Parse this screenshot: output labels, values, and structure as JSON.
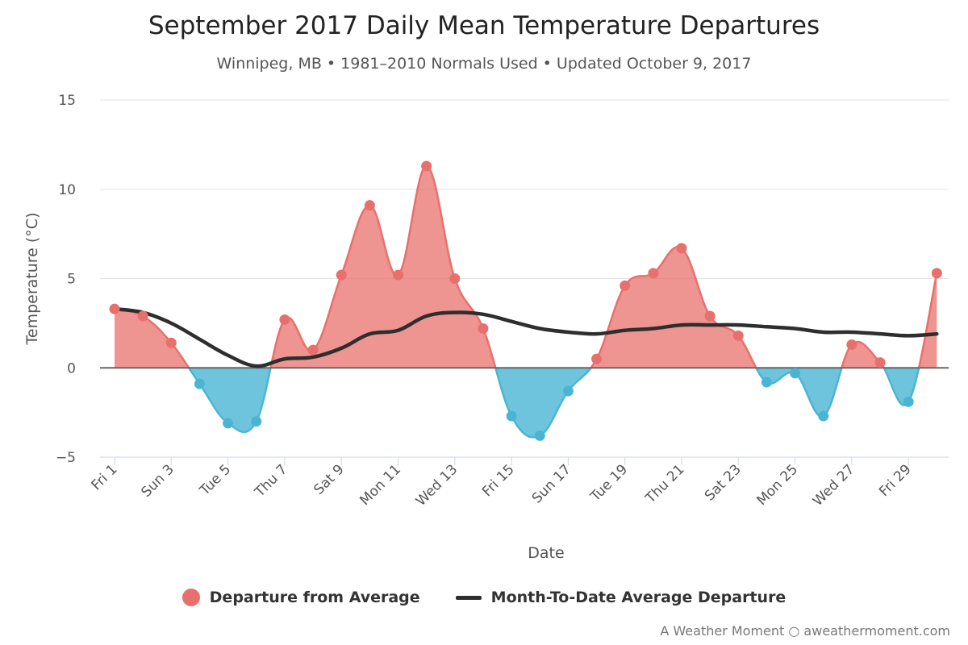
{
  "chart_data": {
    "type": "area",
    "title": "September 2017 Daily Mean Temperature Departures",
    "subtitle": "Winnipeg, MB • 1981–2010 Normals Used • Updated October 9, 2017",
    "xlabel": "Date",
    "ylabel": "Temperature (°C)",
    "ylim": [
      -5,
      15
    ],
    "yticks": [
      -5,
      0,
      5,
      10,
      15
    ],
    "grid": true,
    "legend_position": "bottom",
    "x": [
      1,
      2,
      3,
      4,
      5,
      6,
      7,
      8,
      9,
      10,
      11,
      12,
      13,
      14,
      15,
      16,
      17,
      18,
      19,
      20,
      21,
      22,
      23,
      24,
      25,
      26,
      27,
      28,
      29,
      30
    ],
    "xtick_labels": [
      "Fri 1",
      "Sun 3",
      "Tue 5",
      "Thu 7",
      "Sat 9",
      "Mon 11",
      "Wed 13",
      "Fri 15",
      "Sun 17",
      "Tue 19",
      "Thu 21",
      "Sat 23",
      "Mon 25",
      "Wed 27",
      "Fri 29"
    ],
    "series": [
      {
        "name": "Departure from Average",
        "positive_color": "#e8706c",
        "negative_color": "#4ab5d3",
        "values": [
          3.3,
          2.9,
          1.4,
          -0.9,
          -3.1,
          -3.0,
          2.7,
          1.0,
          5.2,
          9.1,
          5.2,
          11.3,
          5.0,
          2.2,
          -2.7,
          -3.8,
          -1.3,
          0.5,
          4.6,
          5.3,
          6.7,
          2.9,
          1.8,
          -0.8,
          -0.3,
          -2.7,
          1.3,
          0.3,
          -1.9,
          5.3
        ]
      },
      {
        "name": "Month-To-Date Average Departure",
        "color": "#2e2e2e",
        "values": [
          3.3,
          3.1,
          2.5,
          1.6,
          0.7,
          0.1,
          0.5,
          0.6,
          1.1,
          1.9,
          2.1,
          2.9,
          3.1,
          3.0,
          2.6,
          2.2,
          2.0,
          1.9,
          2.1,
          2.2,
          2.4,
          2.4,
          2.4,
          2.3,
          2.2,
          2.0,
          2.0,
          1.9,
          1.8,
          1.9
        ]
      }
    ]
  },
  "legend": {
    "departure_label": "Departure from Average",
    "mtd_label": "Month-To-Date Average Departure"
  },
  "credit": "A Weather Moment ○ aweathermoment.com"
}
